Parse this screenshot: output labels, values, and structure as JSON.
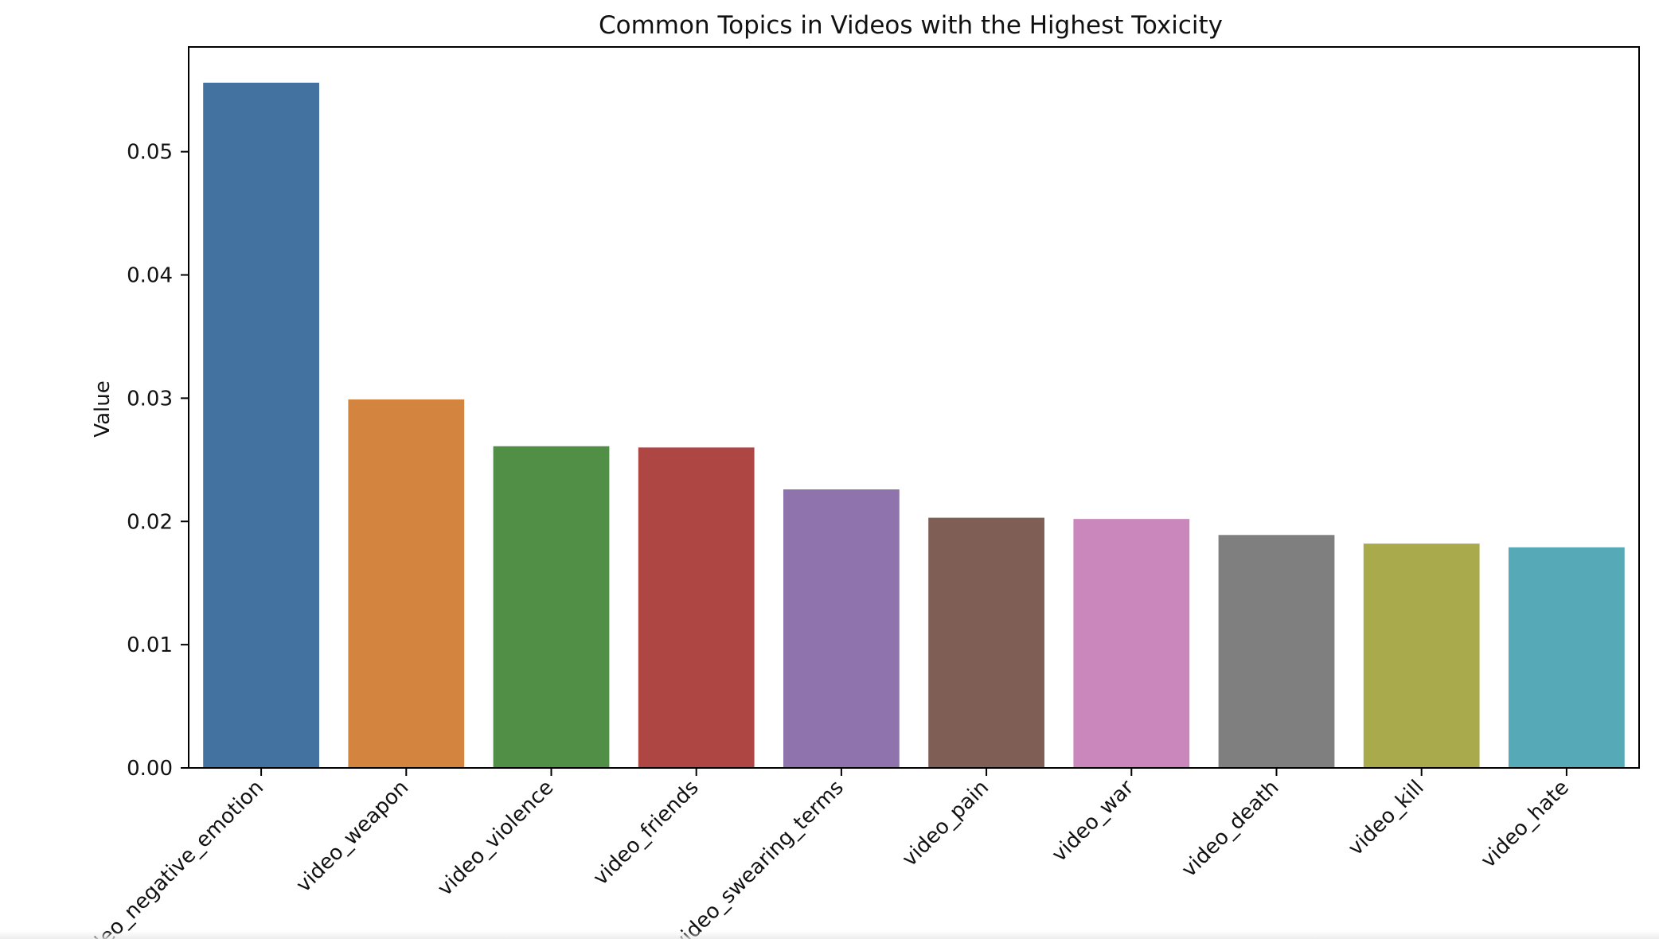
{
  "chart_data": {
    "type": "bar",
    "title": "Common Topics in Videos with the Highest Toxicity",
    "xlabel": "",
    "ylabel": "Value",
    "categories": [
      "video_negative_emotion",
      "video_weapon",
      "video_violence",
      "video_friends",
      "video_swearing_terms",
      "video_pain",
      "video_war",
      "video_death",
      "video_kill",
      "video_hate"
    ],
    "values": [
      0.0556,
      0.0299,
      0.0261,
      0.026,
      0.0226,
      0.0203,
      0.0202,
      0.0189,
      0.0182,
      0.0179
    ],
    "colors": [
      "#4472a0",
      "#d38540",
      "#528f46",
      "#ae4744",
      "#8f73ac",
      "#7f5e55",
      "#ca87bb",
      "#7f7f7f",
      "#a8aa4b",
      "#56a9b7"
    ],
    "ylim": [
      0,
      0.0585
    ],
    "yticks": [
      0.0,
      0.01,
      0.02,
      0.03,
      0.04,
      0.05
    ],
    "ytick_labels": [
      "0.00",
      "0.01",
      "0.02",
      "0.03",
      "0.04",
      "0.05"
    ],
    "grid": false,
    "legend": "none",
    "x_tick_rotation": -45
  }
}
